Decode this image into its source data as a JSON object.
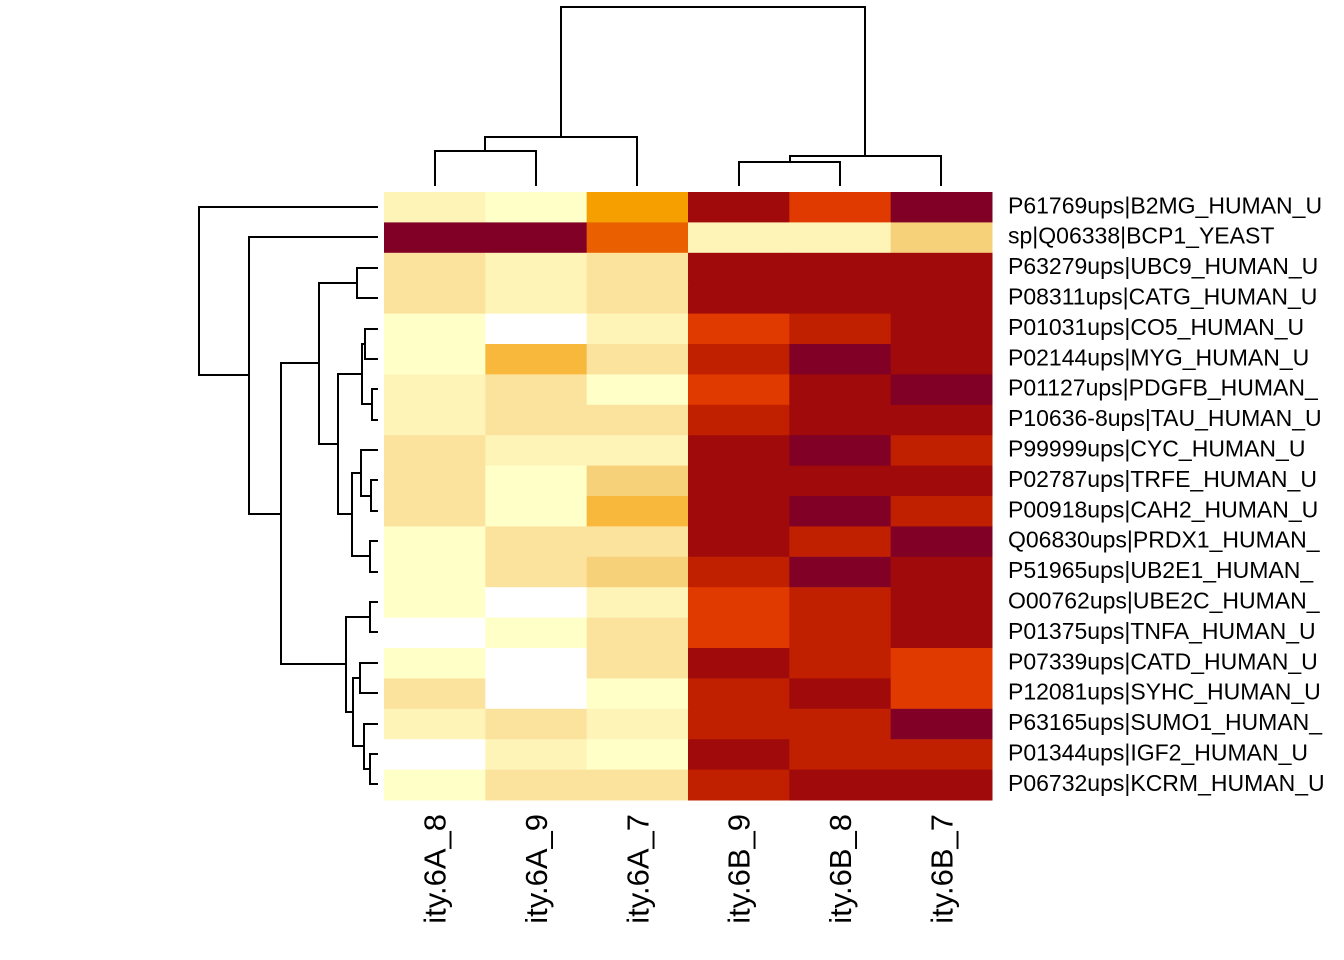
{
  "chart_data": {
    "type": "heatmap",
    "columns": [
      "ity.6A_8",
      "ity.6A_9",
      "ity.6A_7",
      "ity.6B_9",
      "ity.6B_8",
      "ity.6B_7"
    ],
    "rows": [
      "P61769ups|B2MG_HUMAN_U",
      "sp|Q06338|BCP1_YEAST",
      "P63279ups|UBC9_HUMAN_U",
      "P08311ups|CATG_HUMAN_U",
      "P01031ups|CO5_HUMAN_U",
      "P02144ups|MYG_HUMAN_U",
      "P01127ups|PDGFB_HUMAN_",
      "P10636-8ups|TAU_HUMAN_U",
      "P99999ups|CYC_HUMAN_U",
      "P02787ups|TRFE_HUMAN_U",
      "P00918ups|CAH2_HUMAN_U",
      "Q06830ups|PRDX1_HUMAN_",
      "P51965ups|UB2E1_HUMAN_",
      "O00762ups|UBE2C_HUMAN_",
      "P01375ups|TNFA_HUMAN_U",
      "P07339ups|CATD_HUMAN_U",
      "P12081ups|SYHC_HUMAN_U",
      "P63165ups|SUMO1_HUMAN_",
      "P01344ups|IGF2_HUMAN_U",
      "P06732ups|KCRM_HUMAN_U"
    ],
    "values": [
      [
        2,
        1,
        6,
        10,
        8,
        11
      ],
      [
        11,
        11,
        7,
        2,
        2,
        4
      ],
      [
        3,
        2,
        3,
        10,
        10,
        10
      ],
      [
        3,
        2,
        3,
        10,
        10,
        10
      ],
      [
        1,
        0,
        2,
        8,
        9,
        10
      ],
      [
        1,
        5,
        3,
        9,
        11,
        10
      ],
      [
        2,
        3,
        1,
        8,
        10,
        11
      ],
      [
        2,
        3,
        3,
        9,
        10,
        10
      ],
      [
        3,
        2,
        2,
        10,
        11,
        9
      ],
      [
        3,
        1,
        4,
        10,
        10,
        10
      ],
      [
        3,
        1,
        5,
        10,
        11,
        9
      ],
      [
        1,
        3,
        3,
        10,
        9,
        11
      ],
      [
        1,
        3,
        4,
        9,
        11,
        10
      ],
      [
        1,
        0,
        2,
        8,
        9,
        10
      ],
      [
        0,
        1,
        3,
        8,
        9,
        10
      ],
      [
        1,
        0,
        3,
        10,
        9,
        8
      ],
      [
        3,
        0,
        1,
        9,
        10,
        8
      ],
      [
        2,
        3,
        2,
        9,
        9,
        11
      ],
      [
        0,
        2,
        1,
        10,
        9,
        9
      ],
      [
        1,
        3,
        3,
        9,
        10,
        10
      ]
    ],
    "palette": [
      "#ffffff",
      "#ffffc8",
      "#fff4b8",
      "#fbe39e",
      "#f7d07a",
      "#f8b83c",
      "#f5a000",
      "#ea6000",
      "#e03a00",
      "#c02000",
      "#a00a0a",
      "#800026"
    ]
  }
}
